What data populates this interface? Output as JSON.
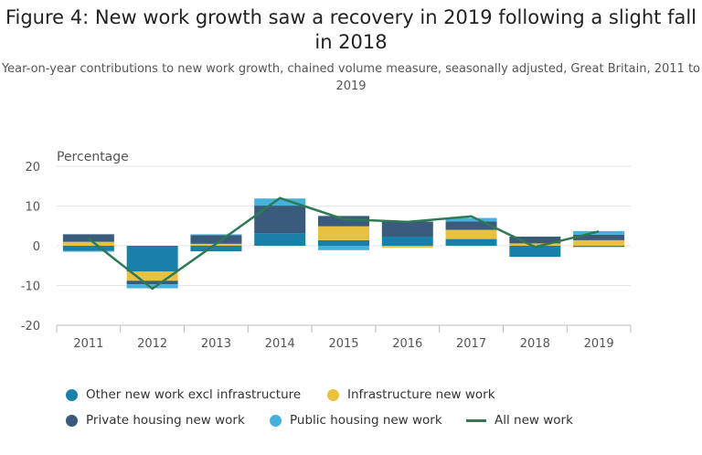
{
  "title": "Figure 4: New work growth saw a recovery in 2019 following a slight fall in 2018",
  "subtitle": "Year-on-year contributions to new work growth, chained volume measure, seasonally adjusted, Great Britain, 2011 to 2019",
  "chart_data": {
    "type": "bar",
    "stacked": true,
    "ylabel": "Percentage",
    "ylim": [
      -20,
      20
    ],
    "yticks": [
      20,
      10,
      0,
      -10,
      -20
    ],
    "grid": true,
    "legend_position": "bottom",
    "categories": [
      "2011",
      "2012",
      "2013",
      "2014",
      "2015",
      "2016",
      "2017",
      "2018",
      "2019"
    ],
    "series": [
      {
        "name": "Other new work excl infrastructure",
        "type": "bar",
        "color": "#1a80a8",
        "values": [
          -1.3,
          -6.5,
          -1.4,
          3.2,
          1.4,
          2.3,
          1.7,
          -2.8,
          -0.3
        ]
      },
      {
        "name": "Infrastructure new work",
        "type": "bar",
        "color": "#e8c140",
        "values": [
          1.0,
          -2.3,
          0.5,
          0.0,
          3.5,
          -0.5,
          2.3,
          0.6,
          1.4
        ]
      },
      {
        "name": "Private housing new work",
        "type": "bar",
        "color": "#3a5b7c",
        "values": [
          1.9,
          -0.9,
          2.2,
          6.9,
          2.6,
          3.8,
          2.1,
          1.7,
          1.4
        ]
      },
      {
        "name": "Public housing new work",
        "type": "bar",
        "color": "#45b2dc",
        "values": [
          -0.2,
          -1.0,
          0.2,
          1.8,
          -1.1,
          0.0,
          0.9,
          0.0,
          0.9
        ]
      },
      {
        "name": "All new work",
        "type": "line",
        "color": "#2e7a55",
        "values": [
          1.8,
          -10.8,
          0.5,
          12.0,
          6.7,
          6.0,
          7.4,
          -0.3,
          3.6
        ]
      }
    ]
  }
}
